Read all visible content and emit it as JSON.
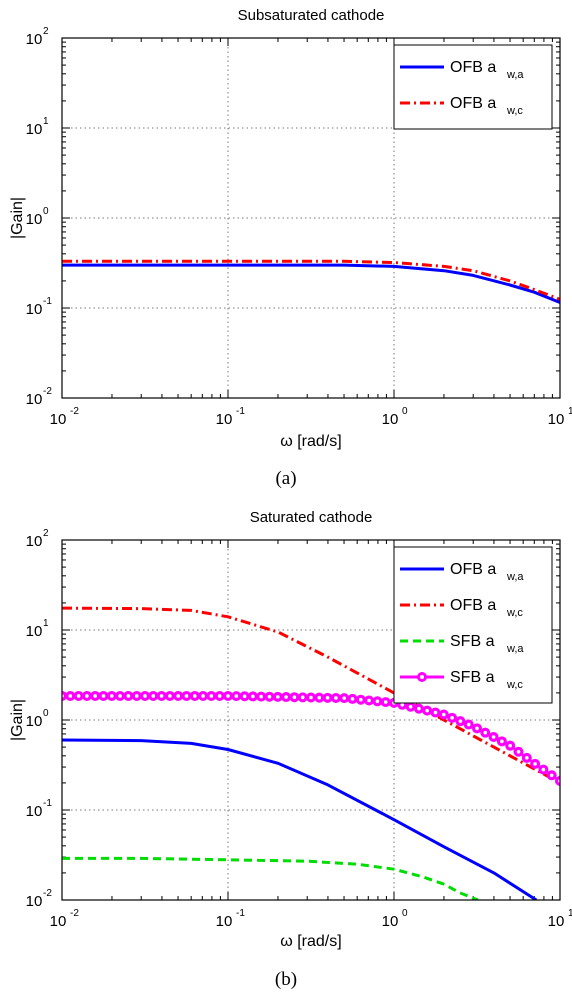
{
  "chart_data": [
    {
      "type": "line",
      "title": "Subsaturated cathode",
      "xlabel": "ω [rad/s]",
      "ylabel": "|Gain|",
      "caption": "(a)",
      "xscale": "log",
      "yscale": "log",
      "xlim": [
        0.01,
        10
      ],
      "ylim": [
        0.01,
        100
      ],
      "grid": true,
      "legend_position": "top-right",
      "x_ticks": [
        {
          "base": "10",
          "exp": "-2"
        },
        {
          "base": "10",
          "exp": "-1"
        },
        {
          "base": "10",
          "exp": "0"
        },
        {
          "base": "10",
          "exp": "1"
        }
      ],
      "y_ticks": [
        {
          "base": "10",
          "exp": "-2"
        },
        {
          "base": "10",
          "exp": "-1"
        },
        {
          "base": "10",
          "exp": "0"
        },
        {
          "base": "10",
          "exp": "1"
        },
        {
          "base": "10",
          "exp": "2"
        }
      ],
      "series": [
        {
          "name": "OFB a",
          "subscript": "w,a",
          "color": "#0000ff",
          "style": "solid",
          "x": [
            0.01,
            0.1,
            0.5,
            1,
            2,
            3,
            5,
            7,
            10
          ],
          "y": [
            0.3,
            0.3,
            0.3,
            0.29,
            0.26,
            0.23,
            0.18,
            0.15,
            0.115
          ]
        },
        {
          "name": "OFB a",
          "subscript": "w,c",
          "color": "#ff0000",
          "style": "dashdot",
          "x": [
            0.01,
            0.1,
            0.5,
            1,
            2,
            3,
            5,
            7,
            10
          ],
          "y": [
            0.33,
            0.33,
            0.33,
            0.32,
            0.29,
            0.26,
            0.2,
            0.16,
            0.125
          ]
        }
      ]
    },
    {
      "type": "line",
      "title": "Saturated cathode",
      "xlabel": "ω [rad/s]",
      "ylabel": "|Gain|",
      "caption": "(b)",
      "xscale": "log",
      "yscale": "log",
      "xlim": [
        0.01,
        10
      ],
      "ylim": [
        0.01,
        100
      ],
      "grid": true,
      "legend_position": "top-right",
      "x_ticks": [
        {
          "base": "10",
          "exp": "-2"
        },
        {
          "base": "10",
          "exp": "-1"
        },
        {
          "base": "10",
          "exp": "0"
        },
        {
          "base": "10",
          "exp": "1"
        }
      ],
      "y_ticks": [
        {
          "base": "10",
          "exp": "-2"
        },
        {
          "base": "10",
          "exp": "-1"
        },
        {
          "base": "10",
          "exp": "0"
        },
        {
          "base": "10",
          "exp": "1"
        },
        {
          "base": "10",
          "exp": "2"
        }
      ],
      "series": [
        {
          "name": "OFB a",
          "subscript": "w,a",
          "color": "#0000ff",
          "style": "solid",
          "x": [
            0.01,
            0.03,
            0.06,
            0.1,
            0.2,
            0.4,
            1,
            2,
            4,
            7.2
          ],
          "y": [
            0.6,
            0.59,
            0.55,
            0.47,
            0.33,
            0.19,
            0.078,
            0.039,
            0.02,
            0.01
          ]
        },
        {
          "name": "OFB a",
          "subscript": "w,c",
          "color": "#ff0000",
          "style": "dashdot",
          "x": [
            0.01,
            0.03,
            0.06,
            0.1,
            0.2,
            0.4,
            1,
            2,
            4,
            10
          ],
          "y": [
            17.5,
            17.3,
            16.5,
            14.0,
            9.5,
            5.0,
            2.0,
            1.0,
            0.5,
            0.2
          ]
        },
        {
          "name": "SFB a",
          "subscript": "w,a",
          "color": "#00dd00",
          "style": "dashed",
          "x": [
            0.01,
            0.03,
            0.1,
            0.3,
            0.6,
            1,
            1.5,
            2,
            2.5,
            3.2
          ],
          "y": [
            0.029,
            0.029,
            0.028,
            0.027,
            0.025,
            0.022,
            0.018,
            0.015,
            0.012,
            0.01
          ]
        },
        {
          "name": "SFB a",
          "subscript": "w,c",
          "color": "#ff00ff",
          "style": "circles",
          "x": [
            0.01,
            0.1,
            0.5,
            1,
            2,
            3,
            5,
            7,
            10
          ],
          "y": [
            1.85,
            1.85,
            1.75,
            1.55,
            1.15,
            0.85,
            0.52,
            0.33,
            0.21
          ]
        }
      ]
    }
  ],
  "colors": {
    "axes": "#000000",
    "grid": "#7a7a7a",
    "background": "#ffffff"
  }
}
